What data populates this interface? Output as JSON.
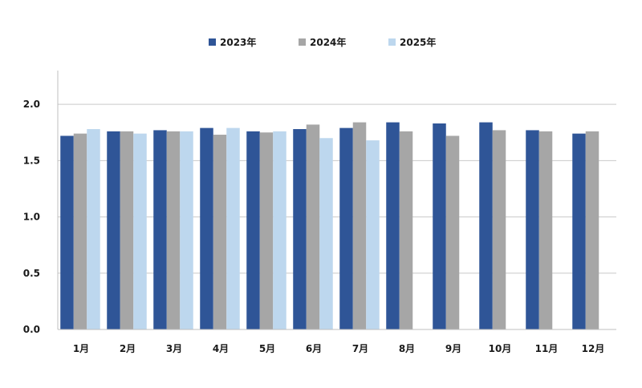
{
  "chart_data": {
    "type": "bar",
    "title": "",
    "xlabel": "",
    "ylabel": "",
    "categories": [
      "1月",
      "2月",
      "3月",
      "4月",
      "5月",
      "6月",
      "7月",
      "8月",
      "9月",
      "10月",
      "11月",
      "12月"
    ],
    "series": [
      {
        "name": "2023年",
        "color": "#2f5597",
        "values": [
          1.72,
          1.76,
          1.77,
          1.79,
          1.76,
          1.78,
          1.79,
          1.84,
          1.83,
          1.84,
          1.77,
          1.74
        ]
      },
      {
        "name": "2024年",
        "color": "#a6a6a6",
        "values": [
          1.74,
          1.76,
          1.76,
          1.73,
          1.75,
          1.82,
          1.84,
          1.76,
          1.72,
          1.77,
          1.76,
          1.76
        ]
      },
      {
        "name": "2025年",
        "color": "#bdd7ee",
        "values": [
          1.78,
          1.74,
          1.76,
          1.79,
          1.76,
          1.7,
          1.68,
          null,
          null,
          null,
          null,
          null
        ]
      }
    ],
    "ylim": [
      0,
      2.3
    ],
    "yticks": [
      0.0,
      0.5,
      1.0,
      1.5,
      2.0
    ],
    "ytick_labels": [
      "0.0",
      "0.5",
      "1.0",
      "1.5",
      "2.0"
    ],
    "grid": true,
    "legend_position": "top"
  }
}
